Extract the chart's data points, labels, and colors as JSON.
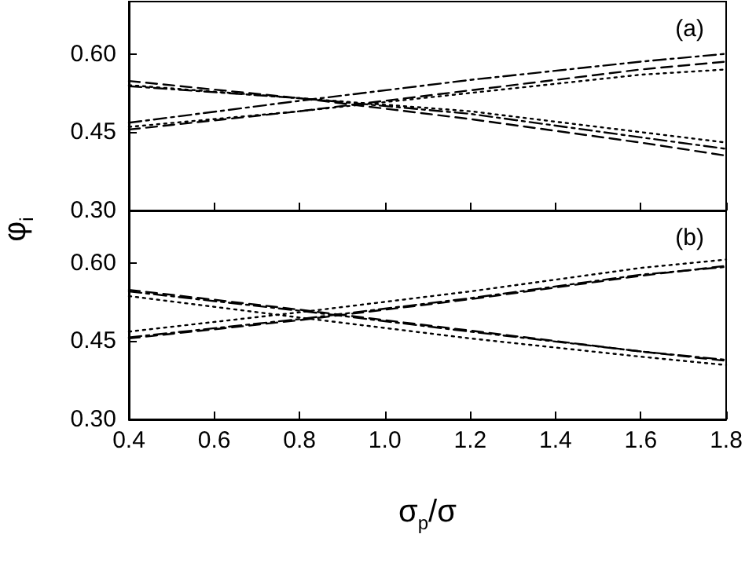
{
  "chart_data": [
    {
      "type": "line",
      "ylabel": "φ$_{i}$",
      "annotations": [
        "(a)"
      ],
      "x": [
        0.4,
        0.8,
        1.2,
        1.6,
        1.8
      ],
      "xlim": [
        0.4,
        1.8
      ],
      "xticks": [
        0.4,
        0.6,
        0.8,
        1,
        1.2,
        1.4,
        1.6,
        1.8
      ],
      "ylim": [
        0.3,
        0.7
      ],
      "yticks": [
        {
          "value": 0.3,
          "label": "0.30"
        },
        {
          "value": 0.45,
          "label": "0.45"
        },
        {
          "value": 0.6,
          "label": "0.60"
        }
      ],
      "tick_labels": "y",
      "grid": false,
      "marker": "none",
      "series": [
        {
          "color": "#000000",
          "line_style": "dashdot",
          "values": [
            0.468,
            0.51,
            0.55,
            0.585,
            0.6
          ]
        },
        {
          "color": "#000000",
          "line_style": "dashed",
          "values": [
            0.455,
            0.49,
            0.53,
            0.57,
            0.585
          ]
        },
        {
          "color": "#000000",
          "line_style": "dotted",
          "values": [
            0.46,
            0.49,
            0.525,
            0.56,
            0.57
          ]
        },
        {
          "color": "#000000",
          "line_style": "dashed",
          "values": [
            0.548,
            0.515,
            0.475,
            0.43,
            0.405
          ]
        },
        {
          "color": "#000000",
          "line_style": "dashdot",
          "values": [
            0.538,
            0.515,
            0.485,
            0.44,
            0.418
          ]
        },
        {
          "color": "#000000",
          "line_style": "dotted",
          "values": [
            0.54,
            0.515,
            0.49,
            0.45,
            0.43
          ]
        }
      ]
    },
    {
      "type": "line",
      "xlabel": "σ$_{p}$/σ",
      "annotations": [
        "(b)"
      ],
      "x": [
        0.4,
        0.8,
        1.2,
        1.6,
        1.8
      ],
      "xlim": [
        0.4,
        1.8
      ],
      "xticks": [
        0.4,
        0.6,
        0.8,
        {
          "value": 1,
          "label": "1.0"
        },
        1.2,
        1.4,
        1.6,
        1.8
      ],
      "ylim": [
        0.3,
        0.7
      ],
      "yticks": [
        {
          "value": 0.3,
          "label": "0.30"
        },
        {
          "value": 0.45,
          "label": "0.45"
        },
        {
          "value": 0.6,
          "label": "0.60"
        }
      ],
      "grid": false,
      "marker": "none",
      "series": [
        {
          "color": "#000000",
          "line_style": "dashed",
          "values": [
            0.455,
            0.49,
            0.53,
            0.575,
            0.594
          ]
        },
        {
          "color": "#000000",
          "line_style": "dashdot",
          "values": [
            0.457,
            0.492,
            0.532,
            0.577,
            0.592
          ]
        },
        {
          "color": "#000000",
          "line_style": "dotted",
          "values": [
            0.468,
            0.505,
            0.545,
            0.59,
            0.606
          ]
        },
        {
          "color": "#000000",
          "line_style": "dashed",
          "values": [
            0.548,
            0.51,
            0.47,
            0.43,
            0.412
          ]
        },
        {
          "color": "#000000",
          "line_style": "dashdot",
          "values": [
            0.545,
            0.508,
            0.468,
            0.43,
            0.414
          ]
        },
        {
          "color": "#000000",
          "line_style": "dotted",
          "values": [
            0.536,
            0.495,
            0.455,
            0.42,
            0.404
          ]
        }
      ]
    }
  ]
}
